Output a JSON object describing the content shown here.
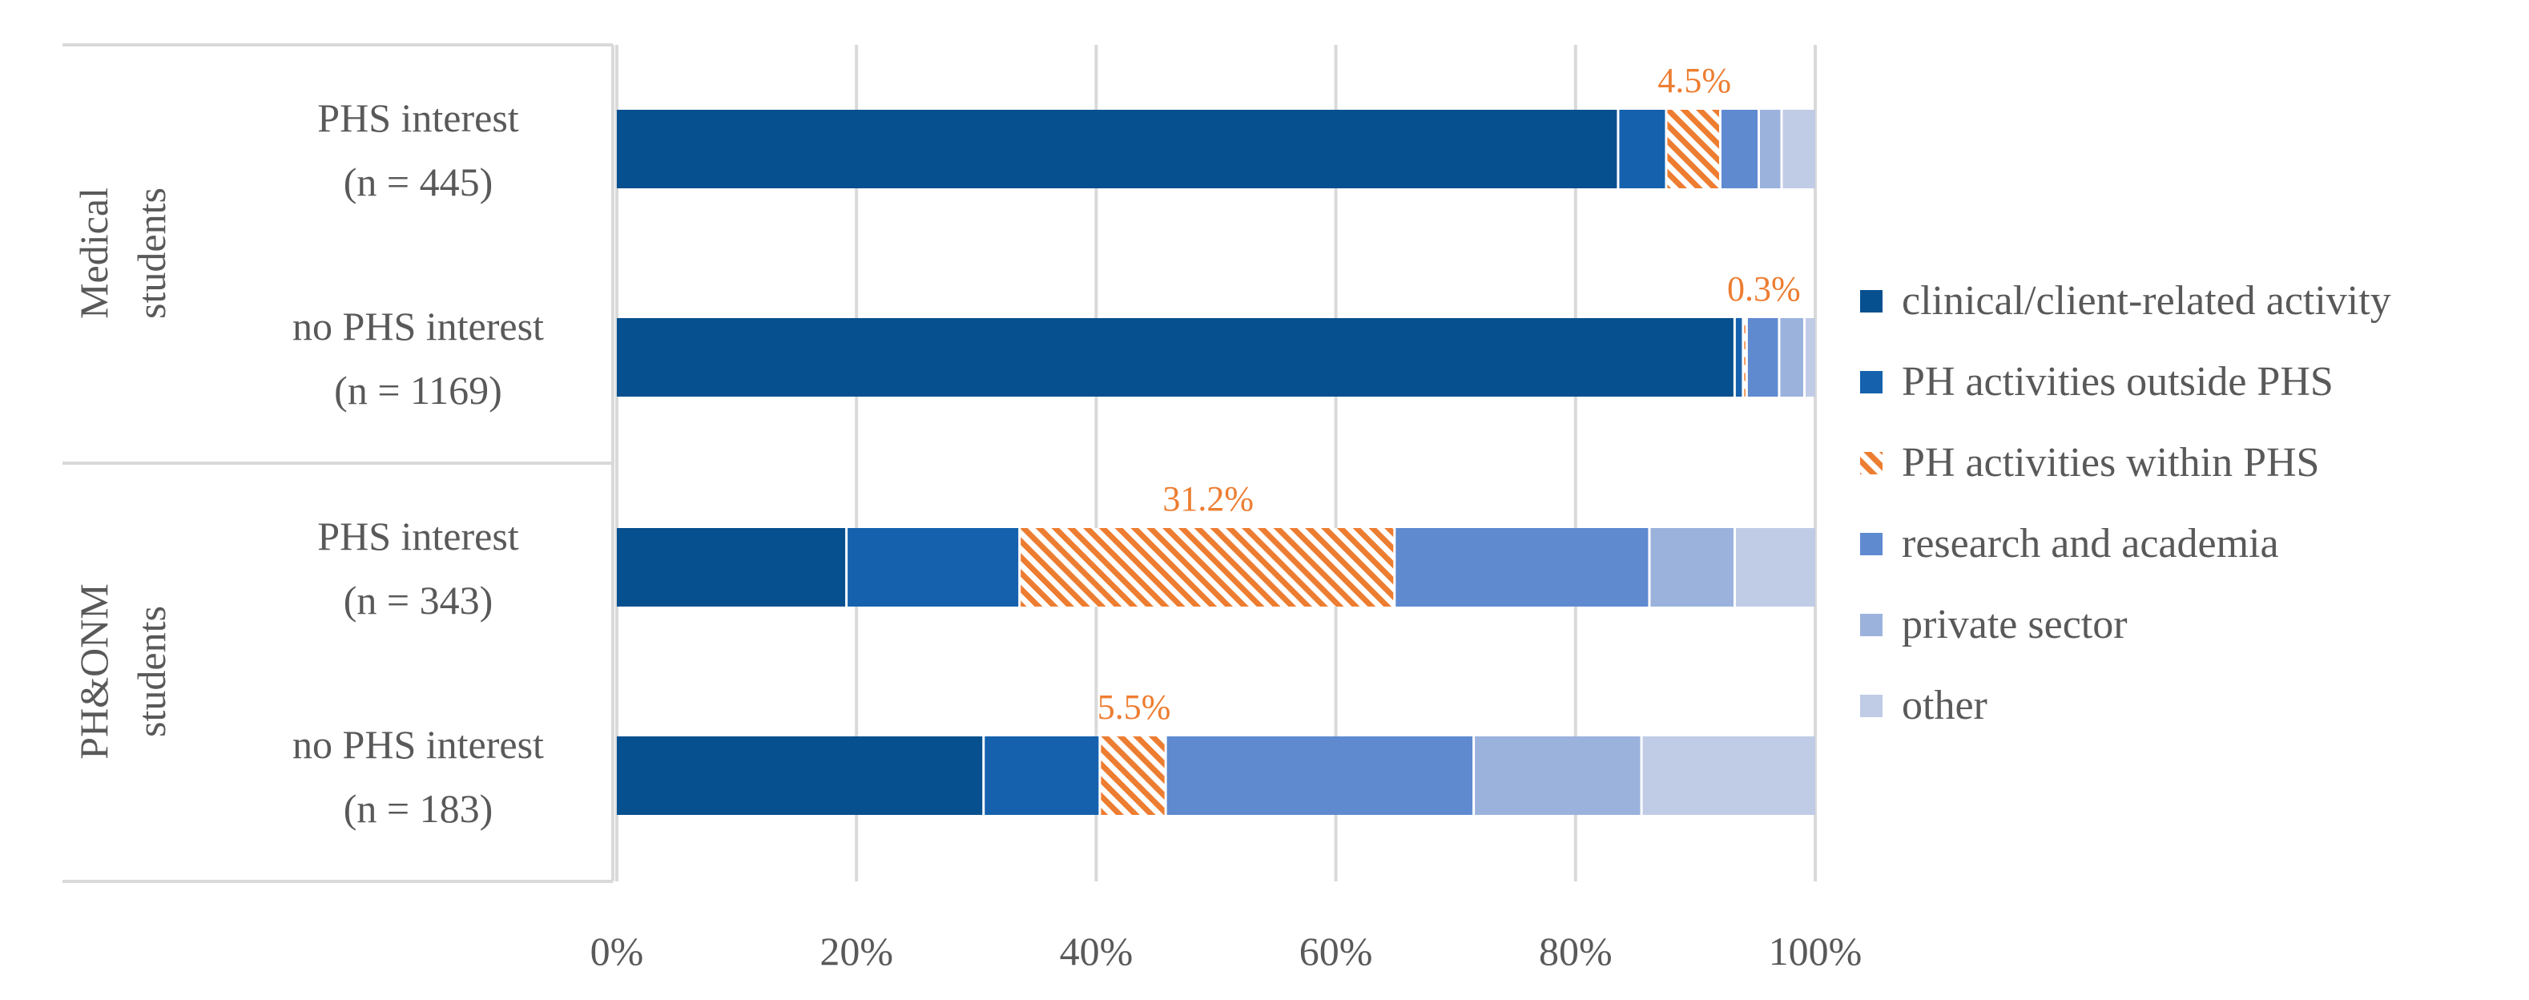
{
  "chart_data": {
    "type": "stacked-bar-horizontal-100",
    "x_ticks": [
      "0%",
      "20%",
      "40%",
      "60%",
      "80%",
      "100%"
    ],
    "xlim": [
      0,
      100
    ],
    "grid": true,
    "legend_position": "right",
    "colors": {
      "clinical": "#07508f",
      "ph_outside": "#1561ad",
      "ph_within": "#ed7d31",
      "research": "#5f8ad0",
      "private": "#9bb2dd",
      "other": "#c0cbe6"
    },
    "series": [
      {
        "key": "clinical",
        "name": "clinical/client-related activity",
        "pattern": "solid"
      },
      {
        "key": "ph_outside",
        "name": "PH activities outside PHS",
        "pattern": "solid"
      },
      {
        "key": "ph_within",
        "name": "PH activities within PHS",
        "pattern": "hatched"
      },
      {
        "key": "research",
        "name": "research and academia",
        "pattern": "solid"
      },
      {
        "key": "private",
        "name": "private sector",
        "pattern": "solid"
      },
      {
        "key": "other",
        "name": "other",
        "pattern": "solid"
      }
    ],
    "groups": [
      {
        "label_lines": [
          "Medical",
          "students"
        ],
        "rows": [
          {
            "label_lines": [
              "PHS interest",
              "(n = 445)"
            ],
            "values": [
              83.4,
              4.0,
              4.5,
              3.2,
              1.9,
              2.7
            ],
            "highlight_label": "4.5%"
          },
          {
            "label_lines": [
              "no PHS interest",
              "(n = 1169)"
            ],
            "values": [
              93.0,
              0.7,
              0.3,
              2.7,
              2.1,
              0.8
            ],
            "highlight_label": "0.3%"
          }
        ]
      },
      {
        "label_lines": [
          "PH&ONM",
          "students"
        ],
        "rows": [
          {
            "label_lines": [
              "PHS interest",
              "(n = 343)"
            ],
            "values": [
              19.2,
              14.4,
              31.2,
              21.2,
              7.1,
              6.6
            ],
            "highlight_label": "31.2%"
          },
          {
            "label_lines": [
              "no PHS interest",
              "(n = 183)"
            ],
            "values": [
              30.7,
              9.7,
              5.5,
              25.7,
              14.0,
              14.4
            ],
            "highlight_label": "5.5%"
          }
        ]
      }
    ]
  }
}
